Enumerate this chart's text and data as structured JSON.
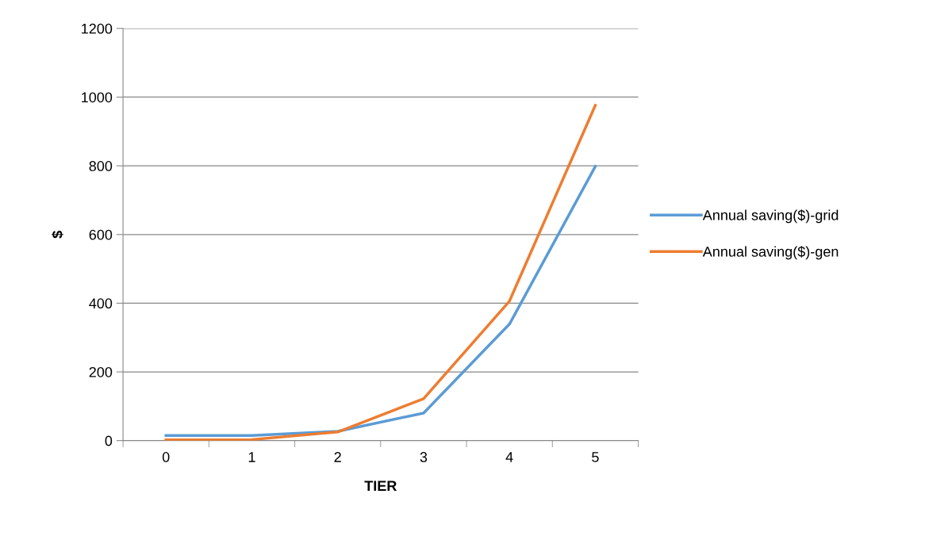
{
  "chart_data": {
    "type": "line",
    "xlabel": "TIER",
    "ylabel": "$",
    "categories": [
      "0",
      "1",
      "2",
      "3",
      "4",
      "5"
    ],
    "series": [
      {
        "name": "Annual saving($)-grid",
        "color": "#5b9bd5",
        "values": [
          15,
          15,
          27,
          80,
          339,
          798
        ]
      },
      {
        "name": "Annual saving($)-gen",
        "color": "#ed7d31",
        "values": [
          2,
          3,
          25,
          122,
          406,
          976
        ]
      }
    ],
    "ylim": [
      0,
      1200
    ],
    "yticks": [
      0,
      200,
      400,
      600,
      800,
      1000,
      1200
    ],
    "grid": "y",
    "legend": "right",
    "marker": "none",
    "line_style": "solid"
  }
}
